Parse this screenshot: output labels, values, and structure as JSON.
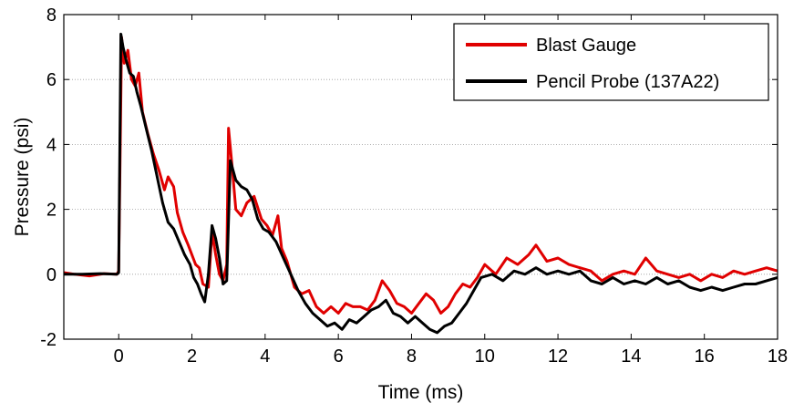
{
  "chart_data": {
    "type": "line",
    "title": "",
    "xlabel": "Time (ms)",
    "ylabel": "Pressure (psi)",
    "xlim": [
      -1.5,
      18
    ],
    "ylim": [
      -2,
      8
    ],
    "x_ticks": [
      0,
      2,
      4,
      6,
      8,
      10,
      12,
      14,
      16,
      18
    ],
    "y_ticks": [
      -2,
      0,
      2,
      4,
      6,
      8
    ],
    "grid": "horizontal dotted",
    "legend_placement": "top-right",
    "series": [
      {
        "name": "Blast Gauge",
        "color": "#e00000",
        "points": [
          [
            -1.5,
            0.05
          ],
          [
            -1.2,
            0.0
          ],
          [
            -0.8,
            -0.05
          ],
          [
            -0.4,
            0.02
          ],
          [
            -0.05,
            0.0
          ],
          [
            0.0,
            0.1
          ],
          [
            0.08,
            7.3
          ],
          [
            0.15,
            6.5
          ],
          [
            0.25,
            6.9
          ],
          [
            0.35,
            6.0
          ],
          [
            0.45,
            5.8
          ],
          [
            0.55,
            6.2
          ],
          [
            0.65,
            5.0
          ],
          [
            0.8,
            4.3
          ],
          [
            0.95,
            3.7
          ],
          [
            1.1,
            3.2
          ],
          [
            1.25,
            2.6
          ],
          [
            1.35,
            3.0
          ],
          [
            1.5,
            2.7
          ],
          [
            1.6,
            1.9
          ],
          [
            1.75,
            1.3
          ],
          [
            1.9,
            0.9
          ],
          [
            2.0,
            0.6
          ],
          [
            2.1,
            0.3
          ],
          [
            2.2,
            0.2
          ],
          [
            2.3,
            -0.3
          ],
          [
            2.45,
            -0.4
          ],
          [
            2.55,
            1.3
          ],
          [
            2.65,
            0.6
          ],
          [
            2.75,
            0.0
          ],
          [
            2.85,
            -0.2
          ],
          [
            2.95,
            0.3
          ],
          [
            3.0,
            4.5
          ],
          [
            3.1,
            3.3
          ],
          [
            3.2,
            2.0
          ],
          [
            3.35,
            1.8
          ],
          [
            3.5,
            2.2
          ],
          [
            3.7,
            2.4
          ],
          [
            3.9,
            1.7
          ],
          [
            4.05,
            1.5
          ],
          [
            4.2,
            1.2
          ],
          [
            4.35,
            1.8
          ],
          [
            4.45,
            0.8
          ],
          [
            4.6,
            0.4
          ],
          [
            4.8,
            -0.4
          ],
          [
            5.0,
            -0.6
          ],
          [
            5.2,
            -0.5
          ],
          [
            5.4,
            -1.0
          ],
          [
            5.6,
            -1.2
          ],
          [
            5.8,
            -1.0
          ],
          [
            6.0,
            -1.2
          ],
          [
            6.2,
            -0.9
          ],
          [
            6.4,
            -1.0
          ],
          [
            6.6,
            -1.0
          ],
          [
            6.8,
            -1.1
          ],
          [
            7.0,
            -0.8
          ],
          [
            7.2,
            -0.2
          ],
          [
            7.4,
            -0.5
          ],
          [
            7.6,
            -0.9
          ],
          [
            7.8,
            -1.0
          ],
          [
            8.0,
            -1.2
          ],
          [
            8.2,
            -0.9
          ],
          [
            8.4,
            -0.6
          ],
          [
            8.6,
            -0.8
          ],
          [
            8.8,
            -1.2
          ],
          [
            9.0,
            -1.0
          ],
          [
            9.2,
            -0.6
          ],
          [
            9.4,
            -0.3
          ],
          [
            9.6,
            -0.4
          ],
          [
            9.8,
            -0.1
          ],
          [
            10.0,
            0.3
          ],
          [
            10.3,
            0.0
          ],
          [
            10.6,
            0.5
          ],
          [
            10.9,
            0.3
          ],
          [
            11.2,
            0.6
          ],
          [
            11.4,
            0.9
          ],
          [
            11.7,
            0.4
          ],
          [
            12.0,
            0.5
          ],
          [
            12.3,
            0.3
          ],
          [
            12.6,
            0.2
          ],
          [
            12.9,
            0.1
          ],
          [
            13.2,
            -0.2
          ],
          [
            13.5,
            0.0
          ],
          [
            13.8,
            0.1
          ],
          [
            14.1,
            0.0
          ],
          [
            14.4,
            0.5
          ],
          [
            14.7,
            0.1
          ],
          [
            15.0,
            0.0
          ],
          [
            15.3,
            -0.1
          ],
          [
            15.6,
            0.0
          ],
          [
            15.9,
            -0.2
          ],
          [
            16.2,
            0.0
          ],
          [
            16.5,
            -0.1
          ],
          [
            16.8,
            0.1
          ],
          [
            17.1,
            0.0
          ],
          [
            17.4,
            0.1
          ],
          [
            17.7,
            0.2
          ],
          [
            18.0,
            0.1
          ]
        ]
      },
      {
        "name": "Pencil Probe (137A22)",
        "color": "#000000",
        "points": [
          [
            -1.5,
            0.0
          ],
          [
            -1.0,
            0.0
          ],
          [
            -0.5,
            0.02
          ],
          [
            -0.05,
            0.0
          ],
          [
            0.0,
            0.05
          ],
          [
            0.06,
            7.4
          ],
          [
            0.12,
            7.0
          ],
          [
            0.2,
            6.6
          ],
          [
            0.3,
            6.2
          ],
          [
            0.4,
            6.1
          ],
          [
            0.5,
            5.6
          ],
          [
            0.6,
            5.2
          ],
          [
            0.75,
            4.5
          ],
          [
            0.9,
            3.8
          ],
          [
            1.05,
            3.0
          ],
          [
            1.2,
            2.2
          ],
          [
            1.35,
            1.6
          ],
          [
            1.5,
            1.4
          ],
          [
            1.65,
            1.0
          ],
          [
            1.8,
            0.6
          ],
          [
            1.95,
            0.3
          ],
          [
            2.05,
            -0.1
          ],
          [
            2.15,
            -0.3
          ],
          [
            2.25,
            -0.6
          ],
          [
            2.35,
            -0.85
          ],
          [
            2.45,
            0.0
          ],
          [
            2.55,
            1.5
          ],
          [
            2.65,
            1.1
          ],
          [
            2.75,
            0.5
          ],
          [
            2.85,
            -0.3
          ],
          [
            2.95,
            -0.2
          ],
          [
            3.05,
            3.5
          ],
          [
            3.2,
            2.9
          ],
          [
            3.35,
            2.7
          ],
          [
            3.5,
            2.6
          ],
          [
            3.65,
            2.3
          ],
          [
            3.8,
            1.7
          ],
          [
            3.95,
            1.4
          ],
          [
            4.1,
            1.3
          ],
          [
            4.3,
            1.0
          ],
          [
            4.5,
            0.5
          ],
          [
            4.7,
            0.0
          ],
          [
            4.9,
            -0.5
          ],
          [
            5.1,
            -0.9
          ],
          [
            5.3,
            -1.2
          ],
          [
            5.5,
            -1.4
          ],
          [
            5.7,
            -1.6
          ],
          [
            5.9,
            -1.5
          ],
          [
            6.1,
            -1.7
          ],
          [
            6.3,
            -1.4
          ],
          [
            6.5,
            -1.5
          ],
          [
            6.7,
            -1.3
          ],
          [
            6.9,
            -1.1
          ],
          [
            7.1,
            -1.0
          ],
          [
            7.3,
            -0.8
          ],
          [
            7.5,
            -1.2
          ],
          [
            7.7,
            -1.3
          ],
          [
            7.9,
            -1.5
          ],
          [
            8.1,
            -1.3
          ],
          [
            8.3,
            -1.5
          ],
          [
            8.5,
            -1.7
          ],
          [
            8.7,
            -1.8
          ],
          [
            8.9,
            -1.6
          ],
          [
            9.1,
            -1.5
          ],
          [
            9.3,
            -1.2
          ],
          [
            9.5,
            -0.9
          ],
          [
            9.7,
            -0.5
          ],
          [
            9.9,
            -0.1
          ],
          [
            10.2,
            0.0
          ],
          [
            10.5,
            -0.2
          ],
          [
            10.8,
            0.1
          ],
          [
            11.1,
            0.0
          ],
          [
            11.4,
            0.2
          ],
          [
            11.7,
            0.0
          ],
          [
            12.0,
            0.1
          ],
          [
            12.3,
            0.0
          ],
          [
            12.6,
            0.1
          ],
          [
            12.9,
            -0.2
          ],
          [
            13.2,
            -0.3
          ],
          [
            13.5,
            -0.1
          ],
          [
            13.8,
            -0.3
          ],
          [
            14.1,
            -0.2
          ],
          [
            14.4,
            -0.3
          ],
          [
            14.7,
            -0.1
          ],
          [
            15.0,
            -0.3
          ],
          [
            15.3,
            -0.2
          ],
          [
            15.6,
            -0.4
          ],
          [
            15.9,
            -0.5
          ],
          [
            16.2,
            -0.4
          ],
          [
            16.5,
            -0.5
          ],
          [
            16.8,
            -0.4
          ],
          [
            17.1,
            -0.3
          ],
          [
            17.4,
            -0.3
          ],
          [
            17.7,
            -0.2
          ],
          [
            18.0,
            -0.1
          ]
        ]
      }
    ]
  }
}
